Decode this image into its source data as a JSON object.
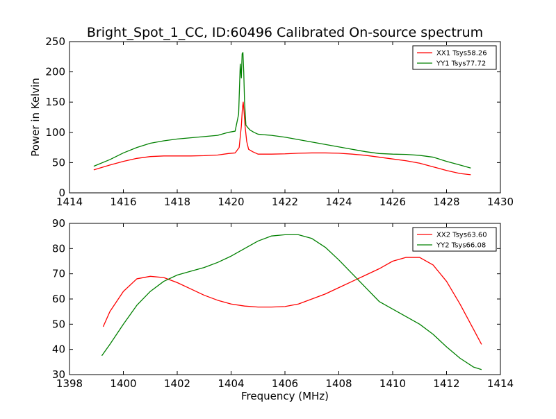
{
  "figure": {
    "title": "Bright_Spot_1_CC, ID:60496 Calibrated On-source spectrum",
    "xlabel": "Frequency (MHz)",
    "ylabel": "Power in Kelvin",
    "colors": {
      "red": "#ff0000",
      "green": "#008000"
    }
  },
  "chart_data": [
    {
      "type": "line",
      "xlim": [
        1414,
        1430
      ],
      "ylim": [
        0,
        250
      ],
      "xticks": [
        1414,
        1416,
        1418,
        1420,
        1422,
        1424,
        1426,
        1428,
        1430
      ],
      "yticks": [
        0,
        50,
        100,
        150,
        200,
        250
      ],
      "grid": false,
      "legend_position": "top-right",
      "series": [
        {
          "name": "XX1 Tsys58.26",
          "color": "#ff0000",
          "x": [
            1414.9,
            1415.5,
            1416.0,
            1416.5,
            1417.0,
            1417.5,
            1418.0,
            1418.5,
            1419.0,
            1419.5,
            1419.9,
            1420.15,
            1420.3,
            1420.38,
            1420.42,
            1420.45,
            1420.48,
            1420.52,
            1420.58,
            1420.65,
            1420.8,
            1421.0,
            1421.5,
            1422.0,
            1422.5,
            1423.0,
            1423.5,
            1424.0,
            1424.5,
            1425.0,
            1425.5,
            1426.0,
            1426.5,
            1427.0,
            1427.5,
            1428.0,
            1428.5,
            1428.9
          ],
          "y": [
            38,
            46,
            52,
            57,
            60,
            61,
            61,
            61,
            61.5,
            62.5,
            65,
            66,
            75,
            110,
            140,
            150,
            135,
            110,
            85,
            72,
            68,
            64,
            64,
            64.5,
            65.5,
            66,
            66,
            65.5,
            64,
            62,
            59,
            56,
            53,
            49,
            43,
            37,
            32,
            30
          ]
        },
        {
          "name": "YY1 Tsys77.72",
          "color": "#008000",
          "x": [
            1414.9,
            1415.5,
            1416.0,
            1416.5,
            1417.0,
            1417.5,
            1418.0,
            1418.5,
            1419.0,
            1419.5,
            1419.9,
            1420.15,
            1420.28,
            1420.34,
            1420.38,
            1420.41,
            1420.44,
            1420.47,
            1420.5,
            1420.55,
            1420.62,
            1420.7,
            1420.85,
            1421.0,
            1421.5,
            1422.0,
            1422.5,
            1423.0,
            1423.5,
            1424.0,
            1424.5,
            1425.0,
            1425.5,
            1426.0,
            1426.5,
            1427.0,
            1427.5,
            1428.0,
            1428.5,
            1428.9
          ],
          "y": [
            44,
            55,
            66,
            75,
            82,
            86,
            89,
            91,
            93,
            95,
            100,
            102,
            130,
            213,
            190,
            230,
            232,
            200,
            150,
            112,
            108,
            104,
            100,
            97,
            95,
            92,
            88,
            84,
            80,
            76,
            72,
            68,
            65,
            64,
            63.5,
            62,
            59,
            52,
            46,
            41
          ]
        }
      ]
    },
    {
      "type": "line",
      "xlim": [
        1398,
        1414
      ],
      "ylim": [
        30,
        90
      ],
      "xticks": [
        1398,
        1400,
        1402,
        1404,
        1406,
        1408,
        1410,
        1412,
        1414
      ],
      "yticks": [
        30,
        40,
        50,
        60,
        70,
        80,
        90
      ],
      "grid": false,
      "legend_position": "top-right",
      "series": [
        {
          "name": "XX2 Tsys63.60",
          "color": "#ff0000",
          "x": [
            1399.25,
            1399.5,
            1400.0,
            1400.5,
            1401.0,
            1401.5,
            1402.0,
            1402.5,
            1403.0,
            1403.5,
            1404.0,
            1404.5,
            1405.0,
            1405.5,
            1406.0,
            1406.5,
            1407.0,
            1407.5,
            1408.0,
            1408.5,
            1409.0,
            1409.5,
            1410.0,
            1410.5,
            1411.0,
            1411.5,
            1412.0,
            1412.5,
            1413.0,
            1413.3
          ],
          "y": [
            49,
            55,
            63,
            68,
            69,
            68.5,
            66.5,
            64,
            61.5,
            59.5,
            58,
            57.2,
            56.8,
            56.8,
            57,
            58,
            60,
            62,
            64.5,
            67,
            69.5,
            72,
            75,
            76.5,
            76.5,
            73.5,
            67,
            58,
            48,
            42
          ]
        },
        {
          "name": "YY2 Tsys66.08",
          "color": "#008000",
          "x": [
            1399.2,
            1399.5,
            1400.0,
            1400.5,
            1401.0,
            1401.5,
            1402.0,
            1402.5,
            1403.0,
            1403.5,
            1404.0,
            1404.5,
            1405.0,
            1405.5,
            1406.0,
            1406.5,
            1407.0,
            1407.5,
            1408.0,
            1408.5,
            1409.0,
            1409.5,
            1410.0,
            1410.5,
            1411.0,
            1411.5,
            1412.0,
            1412.5,
            1413.0,
            1413.3
          ],
          "y": [
            37.5,
            42,
            50,
            57.5,
            63,
            67,
            69.5,
            71,
            72.5,
            74.5,
            77,
            80,
            83,
            85,
            85.5,
            85.5,
            84,
            80.5,
            75.5,
            70,
            64.5,
            59,
            56,
            53,
            50,
            46,
            41,
            36.5,
            33,
            32
          ]
        }
      ]
    }
  ]
}
